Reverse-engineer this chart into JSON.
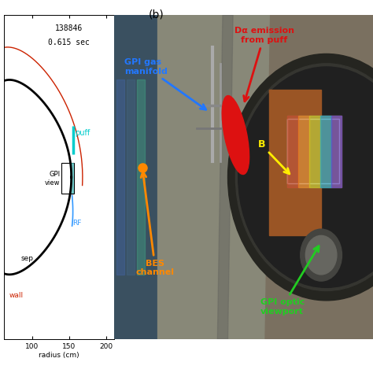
{
  "title_b": "(b)",
  "shot_label": "138846",
  "time_label": "0.615 sec",
  "xlabel": "radius (cm)",
  "xticks": [
    100,
    150,
    200
  ],
  "sep_label": "sep",
  "wall_label": "wall",
  "puff_label": "puff",
  "gpi_label": "GPI\nview",
  "rf_label": "RF",
  "annotation_gpi_gas": "GPI gas\nmanifold",
  "annotation_dalpha": "Dα emission\nfrom puff",
  "annotation_bes": "BES\nchannel",
  "annotation_gpi_optic": "GPI optic\nviewport",
  "annotation_b": "B",
  "bg_color": "#ffffff",
  "left_bg": "#ffffff",
  "sep_color": "#000000",
  "wall_color": "#cc2200",
  "puff_color": "#00cccc",
  "rf_color": "#3399ff",
  "gpi_box_color": "#000000",
  "gpi_fill_color": "#44bbbb",
  "photo_bg": "#7a6a5a",
  "photo_wall_left": "#4a6a7a",
  "photo_wall_center": "#888880",
  "photo_dark": "#303030",
  "photo_copper": "#aa6633",
  "dalpha_red": "#dd1111",
  "bes_orange": "#ff8800",
  "gpi_blue": "#2277ff",
  "gpi_green": "#22cc22",
  "yellow": "#ffee00"
}
